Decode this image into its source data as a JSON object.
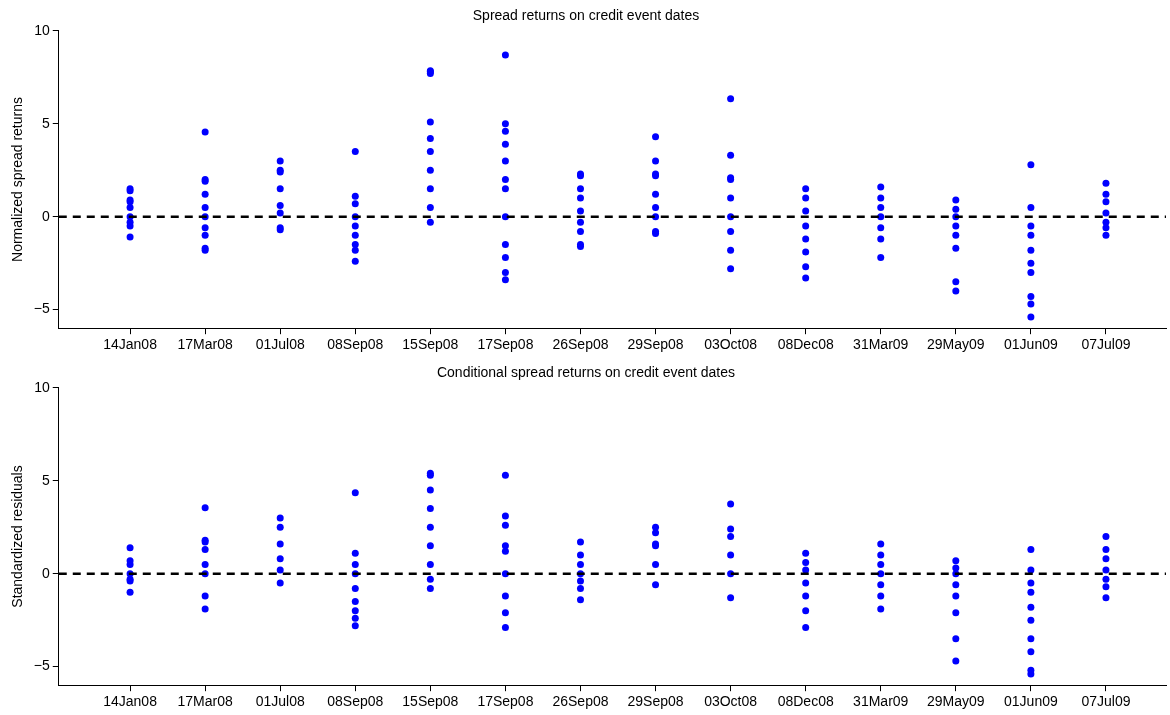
{
  "chart_data": [
    {
      "type": "scatter",
      "title": "Spread returns on credit event dates",
      "ylabel": "Normalized spread returns",
      "categories": [
        "14Jan08",
        "17Mar08",
        "01Jul08",
        "08Sep08",
        "15Sep08",
        "17Sep08",
        "26Sep08",
        "29Sep08",
        "03Oct08",
        "08Dec08",
        "31Mar09",
        "29May09",
        "01Jun09",
        "07Jul09"
      ],
      "ylim": [
        -6,
        10
      ],
      "yticks": [
        -5,
        0,
        5,
        10
      ],
      "grid": false,
      "marker": "circle",
      "ref_lines": [
        {
          "axis": "y",
          "value": 0,
          "color": "#000000",
          "line_style": "dashed"
        }
      ],
      "series": [
        {
          "color": "#0000ff",
          "x": [
            "14Jan08",
            "14Jan08",
            "14Jan08",
            "14Jan08",
            "14Jan08",
            "14Jan08",
            "14Jan08",
            "14Jan08",
            "14Jan08",
            "17Mar08",
            "17Mar08",
            "17Mar08",
            "17Mar08",
            "17Mar08",
            "17Mar08",
            "17Mar08",
            "17Mar08",
            "17Mar08",
            "17Mar08",
            "01Jul08",
            "01Jul08",
            "01Jul08",
            "01Jul08",
            "01Jul08",
            "01Jul08",
            "01Jul08",
            "01Jul08",
            "08Sep08",
            "08Sep08",
            "08Sep08",
            "08Sep08",
            "08Sep08",
            "08Sep08",
            "08Sep08",
            "08Sep08",
            "08Sep08",
            "15Sep08",
            "15Sep08",
            "15Sep08",
            "15Sep08",
            "15Sep08",
            "15Sep08",
            "15Sep08",
            "15Sep08",
            "15Sep08",
            "15Sep08",
            "17Sep08",
            "17Sep08",
            "17Sep08",
            "17Sep08",
            "17Sep08",
            "17Sep08",
            "17Sep08",
            "17Sep08",
            "17Sep08",
            "17Sep08",
            "17Sep08",
            "17Sep08",
            "26Sep08",
            "26Sep08",
            "26Sep08",
            "26Sep08",
            "26Sep08",
            "26Sep08",
            "26Sep08",
            "26Sep08",
            "26Sep08",
            "29Sep08",
            "29Sep08",
            "29Sep08",
            "29Sep08",
            "29Sep08",
            "29Sep08",
            "29Sep08",
            "29Sep08",
            "29Sep08",
            "03Oct08",
            "03Oct08",
            "03Oct08",
            "03Oct08",
            "03Oct08",
            "03Oct08",
            "03Oct08",
            "03Oct08",
            "03Oct08",
            "08Dec08",
            "08Dec08",
            "08Dec08",
            "08Dec08",
            "08Dec08",
            "08Dec08",
            "08Dec08",
            "08Dec08",
            "31Mar09",
            "31Mar09",
            "31Mar09",
            "31Mar09",
            "31Mar09",
            "31Mar09",
            "31Mar09",
            "29May09",
            "29May09",
            "29May09",
            "29May09",
            "29May09",
            "29May09",
            "29May09",
            "29May09",
            "01Jun09",
            "01Jun09",
            "01Jun09",
            "01Jun09",
            "01Jun09",
            "01Jun09",
            "01Jun09",
            "01Jun09",
            "01Jun09",
            "01Jun09",
            "07Jul09",
            "07Jul09",
            "07Jul09",
            "07Jul09",
            "07Jul09",
            "07Jul09",
            "07Jul09"
          ],
          "values": [
            1.4,
            1.5,
            0.5,
            0.8,
            0,
            -0.5,
            -0.3,
            -1.1,
            0.9,
            4.55,
            2.0,
            1.9,
            1.2,
            0.5,
            0,
            -0.6,
            -1.0,
            -1.7,
            -1.8,
            3.0,
            2.5,
            2.4,
            1.5,
            0.6,
            0.2,
            -0.7,
            -0.6,
            3.5,
            1.1,
            0.7,
            0,
            -0.5,
            -1.0,
            -1.5,
            -1.8,
            -2.4,
            7.85,
            7.8,
            7.7,
            5.1,
            4.2,
            3.5,
            2.5,
            1.5,
            0.5,
            -0.3,
            8.7,
            5.0,
            4.6,
            3.9,
            3.0,
            2.0,
            1.5,
            0,
            -1.5,
            -2.2,
            -3.0,
            -3.4,
            2.3,
            2.2,
            1.5,
            1.0,
            0.3,
            -0.3,
            -0.8,
            -1.5,
            -1.6,
            4.3,
            3.0,
            2.3,
            2.2,
            1.2,
            0.5,
            0,
            -0.8,
            -0.9,
            6.35,
            3.3,
            2.1,
            2.0,
            1.0,
            0,
            -0.8,
            -1.8,
            -2.8,
            1.5,
            1.0,
            0.3,
            -0.5,
            -1.2,
            -1.9,
            -2.7,
            -3.3,
            1.6,
            1.0,
            0.5,
            0,
            -0.6,
            -1.2,
            -2.2,
            0.9,
            0.4,
            0,
            -0.5,
            -1.0,
            -1.7,
            -3.5,
            -4.0,
            2.8,
            0.5,
            -0.5,
            -1.0,
            -1.8,
            -2.5,
            -3.0,
            -4.3,
            -4.7,
            -5.4,
            1.8,
            1.2,
            0.8,
            0.2,
            -0.3,
            -0.6,
            -1.0
          ]
        }
      ]
    },
    {
      "type": "scatter",
      "title": "Conditional spread returns on credit event dates",
      "ylabel": "Standardized residuals",
      "categories": [
        "14Jan08",
        "17Mar08",
        "01Jul08",
        "08Sep08",
        "15Sep08",
        "17Sep08",
        "26Sep08",
        "29Sep08",
        "03Oct08",
        "08Dec08",
        "31Mar09",
        "29May09",
        "01Jun09",
        "07Jul09"
      ],
      "ylim": [
        -6,
        10
      ],
      "yticks": [
        -5,
        0,
        5,
        10
      ],
      "grid": false,
      "marker": "circle",
      "ref_lines": [
        {
          "axis": "y",
          "value": 0,
          "color": "#000000",
          "line_style": "dashed"
        }
      ],
      "series": [
        {
          "color": "#0000ff",
          "x": [
            "14Jan08",
            "14Jan08",
            "14Jan08",
            "14Jan08",
            "14Jan08",
            "14Jan08",
            "14Jan08",
            "17Mar08",
            "17Mar08",
            "17Mar08",
            "17Mar08",
            "17Mar08",
            "17Mar08",
            "17Mar08",
            "17Mar08",
            "01Jul08",
            "01Jul08",
            "01Jul08",
            "01Jul08",
            "01Jul08",
            "01Jul08",
            "08Sep08",
            "08Sep08",
            "08Sep08",
            "08Sep08",
            "08Sep08",
            "08Sep08",
            "08Sep08",
            "08Sep08",
            "08Sep08",
            "15Sep08",
            "15Sep08",
            "15Sep08",
            "15Sep08",
            "15Sep08",
            "15Sep08",
            "15Sep08",
            "15Sep08",
            "15Sep08",
            "17Sep08",
            "17Sep08",
            "17Sep08",
            "17Sep08",
            "17Sep08",
            "17Sep08",
            "17Sep08",
            "17Sep08",
            "17Sep08",
            "26Sep08",
            "26Sep08",
            "26Sep08",
            "26Sep08",
            "26Sep08",
            "26Sep08",
            "26Sep08",
            "29Sep08",
            "29Sep08",
            "29Sep08",
            "29Sep08",
            "29Sep08",
            "29Sep08",
            "03Oct08",
            "03Oct08",
            "03Oct08",
            "03Oct08",
            "03Oct08",
            "03Oct08",
            "08Dec08",
            "08Dec08",
            "08Dec08",
            "08Dec08",
            "08Dec08",
            "08Dec08",
            "08Dec08",
            "31Mar09",
            "31Mar09",
            "31Mar09",
            "31Mar09",
            "31Mar09",
            "31Mar09",
            "31Mar09",
            "29May09",
            "29May09",
            "29May09",
            "29May09",
            "29May09",
            "29May09",
            "29May09",
            "29May09",
            "01Jun09",
            "01Jun09",
            "01Jun09",
            "01Jun09",
            "01Jun09",
            "01Jun09",
            "01Jun09",
            "01Jun09",
            "01Jun09",
            "01Jun09",
            "07Jul09",
            "07Jul09",
            "07Jul09",
            "07Jul09",
            "07Jul09",
            "07Jul09",
            "07Jul09"
          ],
          "values": [
            1.4,
            0.7,
            0.5,
            0,
            -0.4,
            -0.3,
            -1.0,
            3.55,
            1.8,
            1.7,
            1.3,
            0.5,
            0,
            -1.2,
            -1.9,
            3.0,
            2.5,
            1.6,
            0.8,
            0.2,
            -0.5,
            4.35,
            1.1,
            0.5,
            0,
            -0.8,
            -1.5,
            -2.0,
            -2.4,
            -2.8,
            5.4,
            5.3,
            4.5,
            3.5,
            2.5,
            1.5,
            0.5,
            -0.3,
            -0.8,
            5.3,
            3.1,
            2.6,
            1.5,
            1.2,
            0,
            -1.2,
            -2.1,
            -2.9,
            1.7,
            1.0,
            0.5,
            0,
            -0.4,
            -0.8,
            -1.4,
            2.5,
            2.2,
            1.6,
            1.5,
            0.5,
            -0.6,
            3.75,
            2.4,
            2.0,
            1.0,
            0,
            -1.3,
            1.1,
            0.6,
            0.2,
            -0.5,
            -1.2,
            -2.0,
            -2.9,
            1.6,
            1.0,
            0.5,
            0,
            -0.6,
            -1.2,
            -1.9,
            0.7,
            0.3,
            0,
            -0.6,
            -1.2,
            -2.1,
            -3.5,
            -4.7,
            1.3,
            0.2,
            -0.5,
            -1.0,
            -1.8,
            -2.5,
            -3.5,
            -4.2,
            -5.2,
            -5.4,
            2.0,
            1.3,
            0.8,
            0.2,
            -0.3,
            -0.7,
            -1.3
          ]
        }
      ]
    }
  ]
}
